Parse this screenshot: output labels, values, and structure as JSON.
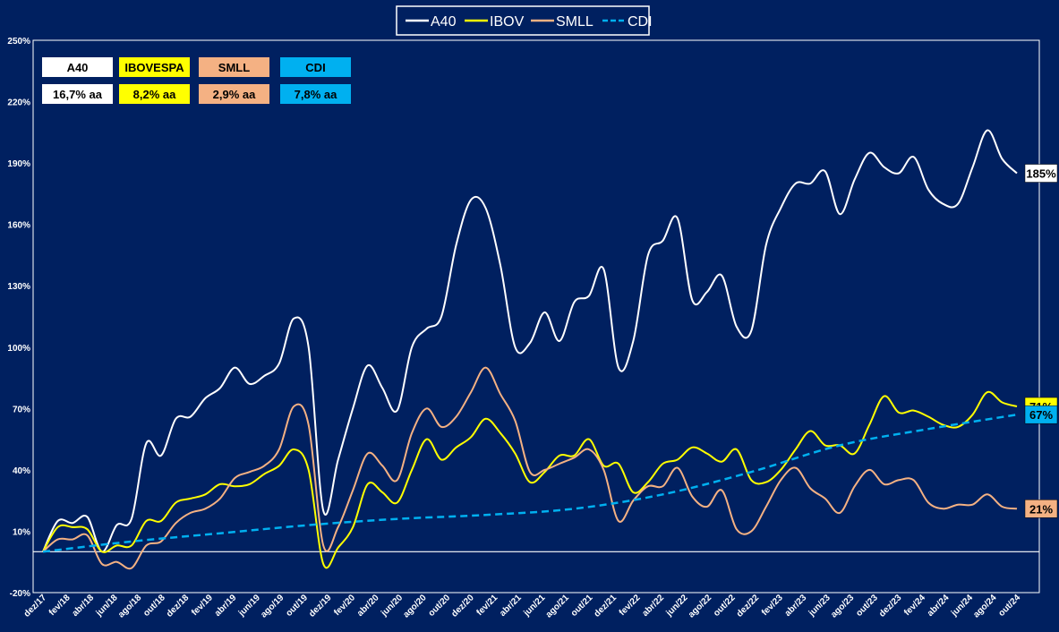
{
  "chart_data": {
    "type": "line",
    "title": "",
    "xlabel": "",
    "ylabel": "",
    "ylim": [
      -20,
      250
    ],
    "yticks": [
      -20,
      10,
      40,
      70,
      100,
      130,
      160,
      190,
      220,
      250
    ],
    "ytick_labels": [
      "-20%",
      "10%",
      "40%",
      "70%",
      "100%",
      "130%",
      "160%",
      "190%",
      "220%",
      "250%"
    ],
    "x_tick_labels": [
      "dez/17",
      "fev/18",
      "abr/18",
      "jun/18",
      "ago/18",
      "out/18",
      "dez/18",
      "fev/19",
      "abr/19",
      "jun/19",
      "ago/19",
      "out/19",
      "dez/19",
      "fev/20",
      "abr/20",
      "jun/20",
      "ago/20",
      "out/20",
      "dez/20",
      "fev/21",
      "abr/21",
      "jun/21",
      "ago/21",
      "out/21",
      "dez/21",
      "fev/22",
      "abr/22",
      "jun/22",
      "ago/22",
      "out/22",
      "dez/22",
      "fev/23",
      "abr/23",
      "jun/23",
      "ago/23",
      "out/23",
      "dez/23",
      "fev/24",
      "abr/24",
      "jun/24",
      "ago/24",
      "out/24"
    ],
    "grid": false,
    "legend_position": "top-center",
    "series": [
      {
        "name": "A40",
        "color": "#ffffff",
        "dash": false,
        "end_label": "185%",
        "points": [
          [
            0,
            0
          ],
          [
            1,
            15
          ],
          [
            2,
            14
          ],
          [
            3,
            17
          ],
          [
            4,
            0
          ],
          [
            5,
            13
          ],
          [
            6,
            16
          ],
          [
            7,
            53
          ],
          [
            8,
            47
          ],
          [
            9,
            65
          ],
          [
            10,
            66
          ],
          [
            11,
            75
          ],
          [
            12,
            80
          ],
          [
            13,
            90
          ],
          [
            14,
            82
          ],
          [
            15,
            86
          ],
          [
            16,
            92
          ],
          [
            17,
            114
          ],
          [
            18,
            100
          ],
          [
            19,
            20
          ],
          [
            20,
            45
          ],
          [
            21,
            70
          ],
          [
            22,
            91
          ],
          [
            23,
            80
          ],
          [
            24,
            69
          ],
          [
            25,
            100
          ],
          [
            26,
            109
          ],
          [
            27,
            115
          ],
          [
            28,
            150
          ],
          [
            29,
            172
          ],
          [
            30,
            168
          ],
          [
            31,
            140
          ],
          [
            32,
            100
          ],
          [
            33,
            102
          ],
          [
            34,
            117
          ],
          [
            35,
            103
          ],
          [
            36,
            122
          ],
          [
            37,
            125
          ],
          [
            38,
            138
          ],
          [
            39,
            90
          ],
          [
            40,
            103
          ],
          [
            41,
            145
          ],
          [
            42,
            152
          ],
          [
            43,
            163
          ],
          [
            44,
            123
          ],
          [
            45,
            127
          ],
          [
            46,
            135
          ],
          [
            47,
            110
          ],
          [
            48,
            108
          ],
          [
            49,
            150
          ],
          [
            50,
            168
          ],
          [
            51,
            180
          ],
          [
            52,
            180
          ],
          [
            53,
            186
          ],
          [
            54,
            165
          ],
          [
            55,
            182
          ],
          [
            56,
            195
          ],
          [
            57,
            188
          ],
          [
            58,
            185
          ],
          [
            59,
            193
          ],
          [
            60,
            177
          ],
          [
            61,
            170
          ],
          [
            62,
            170
          ],
          [
            63,
            188
          ],
          [
            64,
            206
          ],
          [
            65,
            192
          ],
          [
            66,
            185
          ]
        ]
      },
      {
        "name": "IBOV",
        "color": "#ffff00",
        "dash": false,
        "end_label": "71%",
        "points": [
          [
            0,
            0
          ],
          [
            1,
            12
          ],
          [
            2,
            12
          ],
          [
            3,
            11
          ],
          [
            4,
            0
          ],
          [
            5,
            3
          ],
          [
            6,
            3
          ],
          [
            7,
            15
          ],
          [
            8,
            15
          ],
          [
            9,
            24
          ],
          [
            10,
            26
          ],
          [
            11,
            28
          ],
          [
            12,
            33
          ],
          [
            13,
            32
          ],
          [
            14,
            33
          ],
          [
            15,
            38
          ],
          [
            16,
            42
          ],
          [
            17,
            50
          ],
          [
            18,
            40
          ],
          [
            19,
            -6
          ],
          [
            20,
            2
          ],
          [
            21,
            12
          ],
          [
            22,
            33
          ],
          [
            23,
            29
          ],
          [
            24,
            24
          ],
          [
            25,
            40
          ],
          [
            26,
            55
          ],
          [
            27,
            45
          ],
          [
            28,
            51
          ],
          [
            29,
            56
          ],
          [
            30,
            65
          ],
          [
            31,
            58
          ],
          [
            32,
            48
          ],
          [
            33,
            34
          ],
          [
            34,
            39
          ],
          [
            35,
            47
          ],
          [
            36,
            47
          ],
          [
            37,
            55
          ],
          [
            38,
            42
          ],
          [
            39,
            43
          ],
          [
            40,
            29
          ],
          [
            41,
            34
          ],
          [
            42,
            43
          ],
          [
            43,
            45
          ],
          [
            44,
            51
          ],
          [
            45,
            48
          ],
          [
            46,
            44
          ],
          [
            47,
            50
          ],
          [
            48,
            35
          ],
          [
            49,
            34
          ],
          [
            50,
            40
          ],
          [
            51,
            50
          ],
          [
            52,
            59
          ],
          [
            53,
            52
          ],
          [
            54,
            52
          ],
          [
            55,
            48
          ],
          [
            56,
            62
          ],
          [
            57,
            76
          ],
          [
            58,
            68
          ],
          [
            59,
            69
          ],
          [
            60,
            66
          ],
          [
            61,
            62
          ],
          [
            62,
            61
          ],
          [
            63,
            67
          ],
          [
            64,
            78
          ],
          [
            65,
            73
          ],
          [
            66,
            71
          ]
        ]
      },
      {
        "name": "SMLL",
        "color": "#f4b183",
        "dash": false,
        "end_label": "21%",
        "points": [
          [
            0,
            0
          ],
          [
            1,
            6
          ],
          [
            2,
            6
          ],
          [
            3,
            8
          ],
          [
            4,
            -6
          ],
          [
            5,
            -5
          ],
          [
            6,
            -8
          ],
          [
            7,
            3
          ],
          [
            8,
            5
          ],
          [
            9,
            14
          ],
          [
            10,
            19
          ],
          [
            11,
            21
          ],
          [
            12,
            26
          ],
          [
            13,
            36
          ],
          [
            14,
            39
          ],
          [
            15,
            42
          ],
          [
            16,
            50
          ],
          [
            17,
            71
          ],
          [
            18,
            62
          ],
          [
            19,
            3
          ],
          [
            20,
            12
          ],
          [
            21,
            30
          ],
          [
            22,
            48
          ],
          [
            23,
            42
          ],
          [
            24,
            35
          ],
          [
            25,
            58
          ],
          [
            26,
            70
          ],
          [
            27,
            61
          ],
          [
            28,
            66
          ],
          [
            29,
            78
          ],
          [
            30,
            90
          ],
          [
            31,
            77
          ],
          [
            32,
            64
          ],
          [
            33,
            39
          ],
          [
            34,
            40
          ],
          [
            35,
            43
          ],
          [
            36,
            46
          ],
          [
            37,
            50
          ],
          [
            38,
            40
          ],
          [
            39,
            15
          ],
          [
            40,
            25
          ],
          [
            41,
            32
          ],
          [
            42,
            32
          ],
          [
            43,
            41
          ],
          [
            44,
            27
          ],
          [
            45,
            22
          ],
          [
            46,
            30
          ],
          [
            47,
            11
          ],
          [
            48,
            10
          ],
          [
            49,
            22
          ],
          [
            50,
            35
          ],
          [
            51,
            41
          ],
          [
            52,
            31
          ],
          [
            53,
            26
          ],
          [
            54,
            19
          ],
          [
            55,
            32
          ],
          [
            56,
            40
          ],
          [
            57,
            33
          ],
          [
            58,
            35
          ],
          [
            59,
            35
          ],
          [
            60,
            24
          ],
          [
            61,
            21
          ],
          [
            62,
            23
          ],
          [
            63,
            23
          ],
          [
            64,
            28
          ],
          [
            65,
            22
          ],
          [
            66,
            21
          ]
        ]
      },
      {
        "name": "CDI",
        "color": "#00b0f0",
        "dash": true,
        "end_label": "67%",
        "points": [
          [
            0,
            0
          ],
          [
            6,
            5
          ],
          [
            12,
            9
          ],
          [
            18,
            13
          ],
          [
            24,
            16
          ],
          [
            30,
            18
          ],
          [
            36,
            21
          ],
          [
            42,
            28
          ],
          [
            48,
            39
          ],
          [
            54,
            52
          ],
          [
            60,
            60
          ],
          [
            66,
            67
          ]
        ]
      }
    ],
    "summary_boxes": [
      {
        "label": "A40",
        "rate": "16,7% aa",
        "bg": "#ffffff",
        "text": "#000000"
      },
      {
        "label": "IBOVESPA",
        "rate": "8,2% aa",
        "bg": "#ffff00",
        "text": "#000000"
      },
      {
        "label": "SMLL",
        "rate": "2,9% aa",
        "bg": "#f4b183",
        "text": "#000000"
      },
      {
        "label": "CDI",
        "rate": "7,8% aa",
        "bg": "#00b0f0",
        "text": "#000000"
      }
    ],
    "legend": [
      {
        "name": "A40",
        "color": "#ffffff",
        "dash": false
      },
      {
        "name": "IBOV",
        "color": "#ffff00",
        "dash": false
      },
      {
        "name": "SMLL",
        "color": "#f4b183",
        "dash": false
      },
      {
        "name": "CDI",
        "color": "#00b0f0",
        "dash": true
      }
    ],
    "colors": {
      "background": "#002060",
      "axis": "#ffffff"
    }
  }
}
